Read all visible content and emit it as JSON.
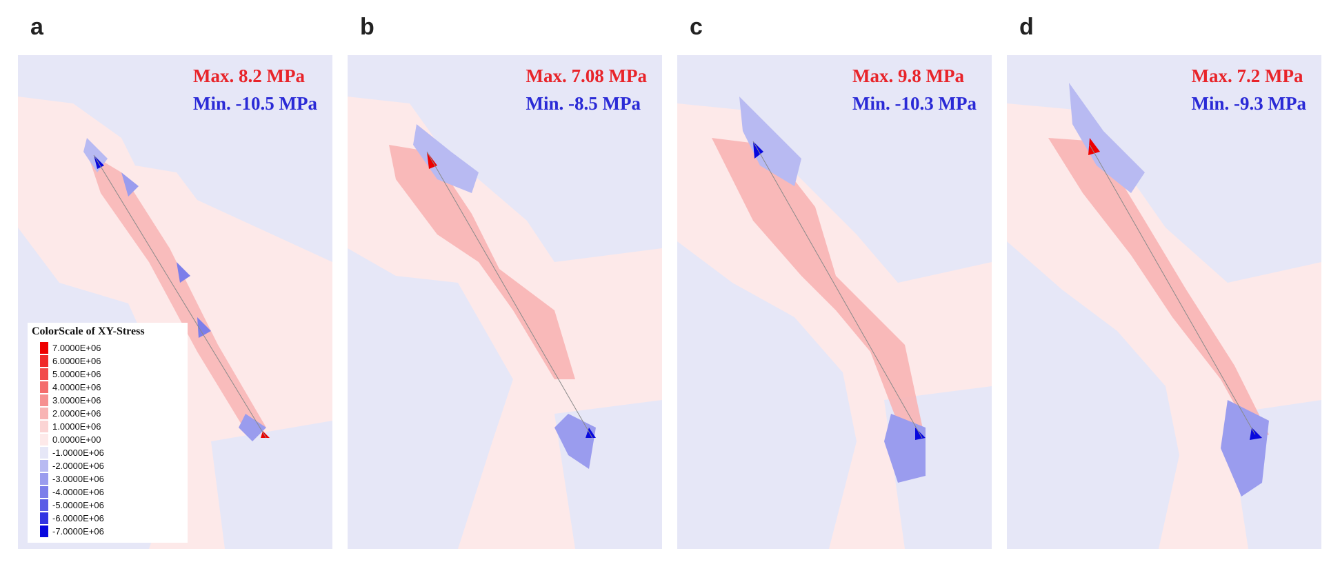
{
  "panels": [
    {
      "letter": "a",
      "max": "Max. 8.2 MPa",
      "min": "Min. -10.5 MPa"
    },
    {
      "letter": "b",
      "max": "Max. 7.08 MPa",
      "min": "Min. -8.5 MPa"
    },
    {
      "letter": "c",
      "max": "Max. 9.8 MPa",
      "min": "Min. -10.3 MPa"
    },
    {
      "letter": "d",
      "max": "Max. 7.2 MPa",
      "min": "Min. -9.3 MPa"
    }
  ],
  "legend": {
    "title": "ColorScale of XY-Stress",
    "entries": [
      {
        "label": "7.0000E+06",
        "color": "#ee0000"
      },
      {
        "label": "6.0000E+06",
        "color": "#f02a2a"
      },
      {
        "label": "5.0000E+06",
        "color": "#f24a4a"
      },
      {
        "label": "4.0000E+06",
        "color": "#f46c6c"
      },
      {
        "label": "3.0000E+06",
        "color": "#f69090"
      },
      {
        "label": "2.0000E+06",
        "color": "#f8b4b4"
      },
      {
        "label": "1.0000E+06",
        "color": "#fbd4d4"
      },
      {
        "label": "0.0000E+00",
        "color": "#fde9e9"
      },
      {
        "label": "-1.0000E+06",
        "color": "#e6e7f7"
      },
      {
        "label": "-2.0000E+06",
        "color": "#b8baf2"
      },
      {
        "label": "-3.0000E+06",
        "color": "#9a9cee"
      },
      {
        "label": "-4.0000E+06",
        "color": "#7c7eea"
      },
      {
        "label": "-5.0000E+06",
        "color": "#5a5ce6"
      },
      {
        "label": "-6.0000E+06",
        "color": "#3234e2"
      },
      {
        "label": "-7.0000E+06",
        "color": "#0808de"
      }
    ]
  },
  "colors": {
    "max_text": "#e8242a",
    "min_text": "#2a2ad6",
    "positive_bg": "#fde9e9",
    "negative_bg": "#e6e7f7"
  }
}
